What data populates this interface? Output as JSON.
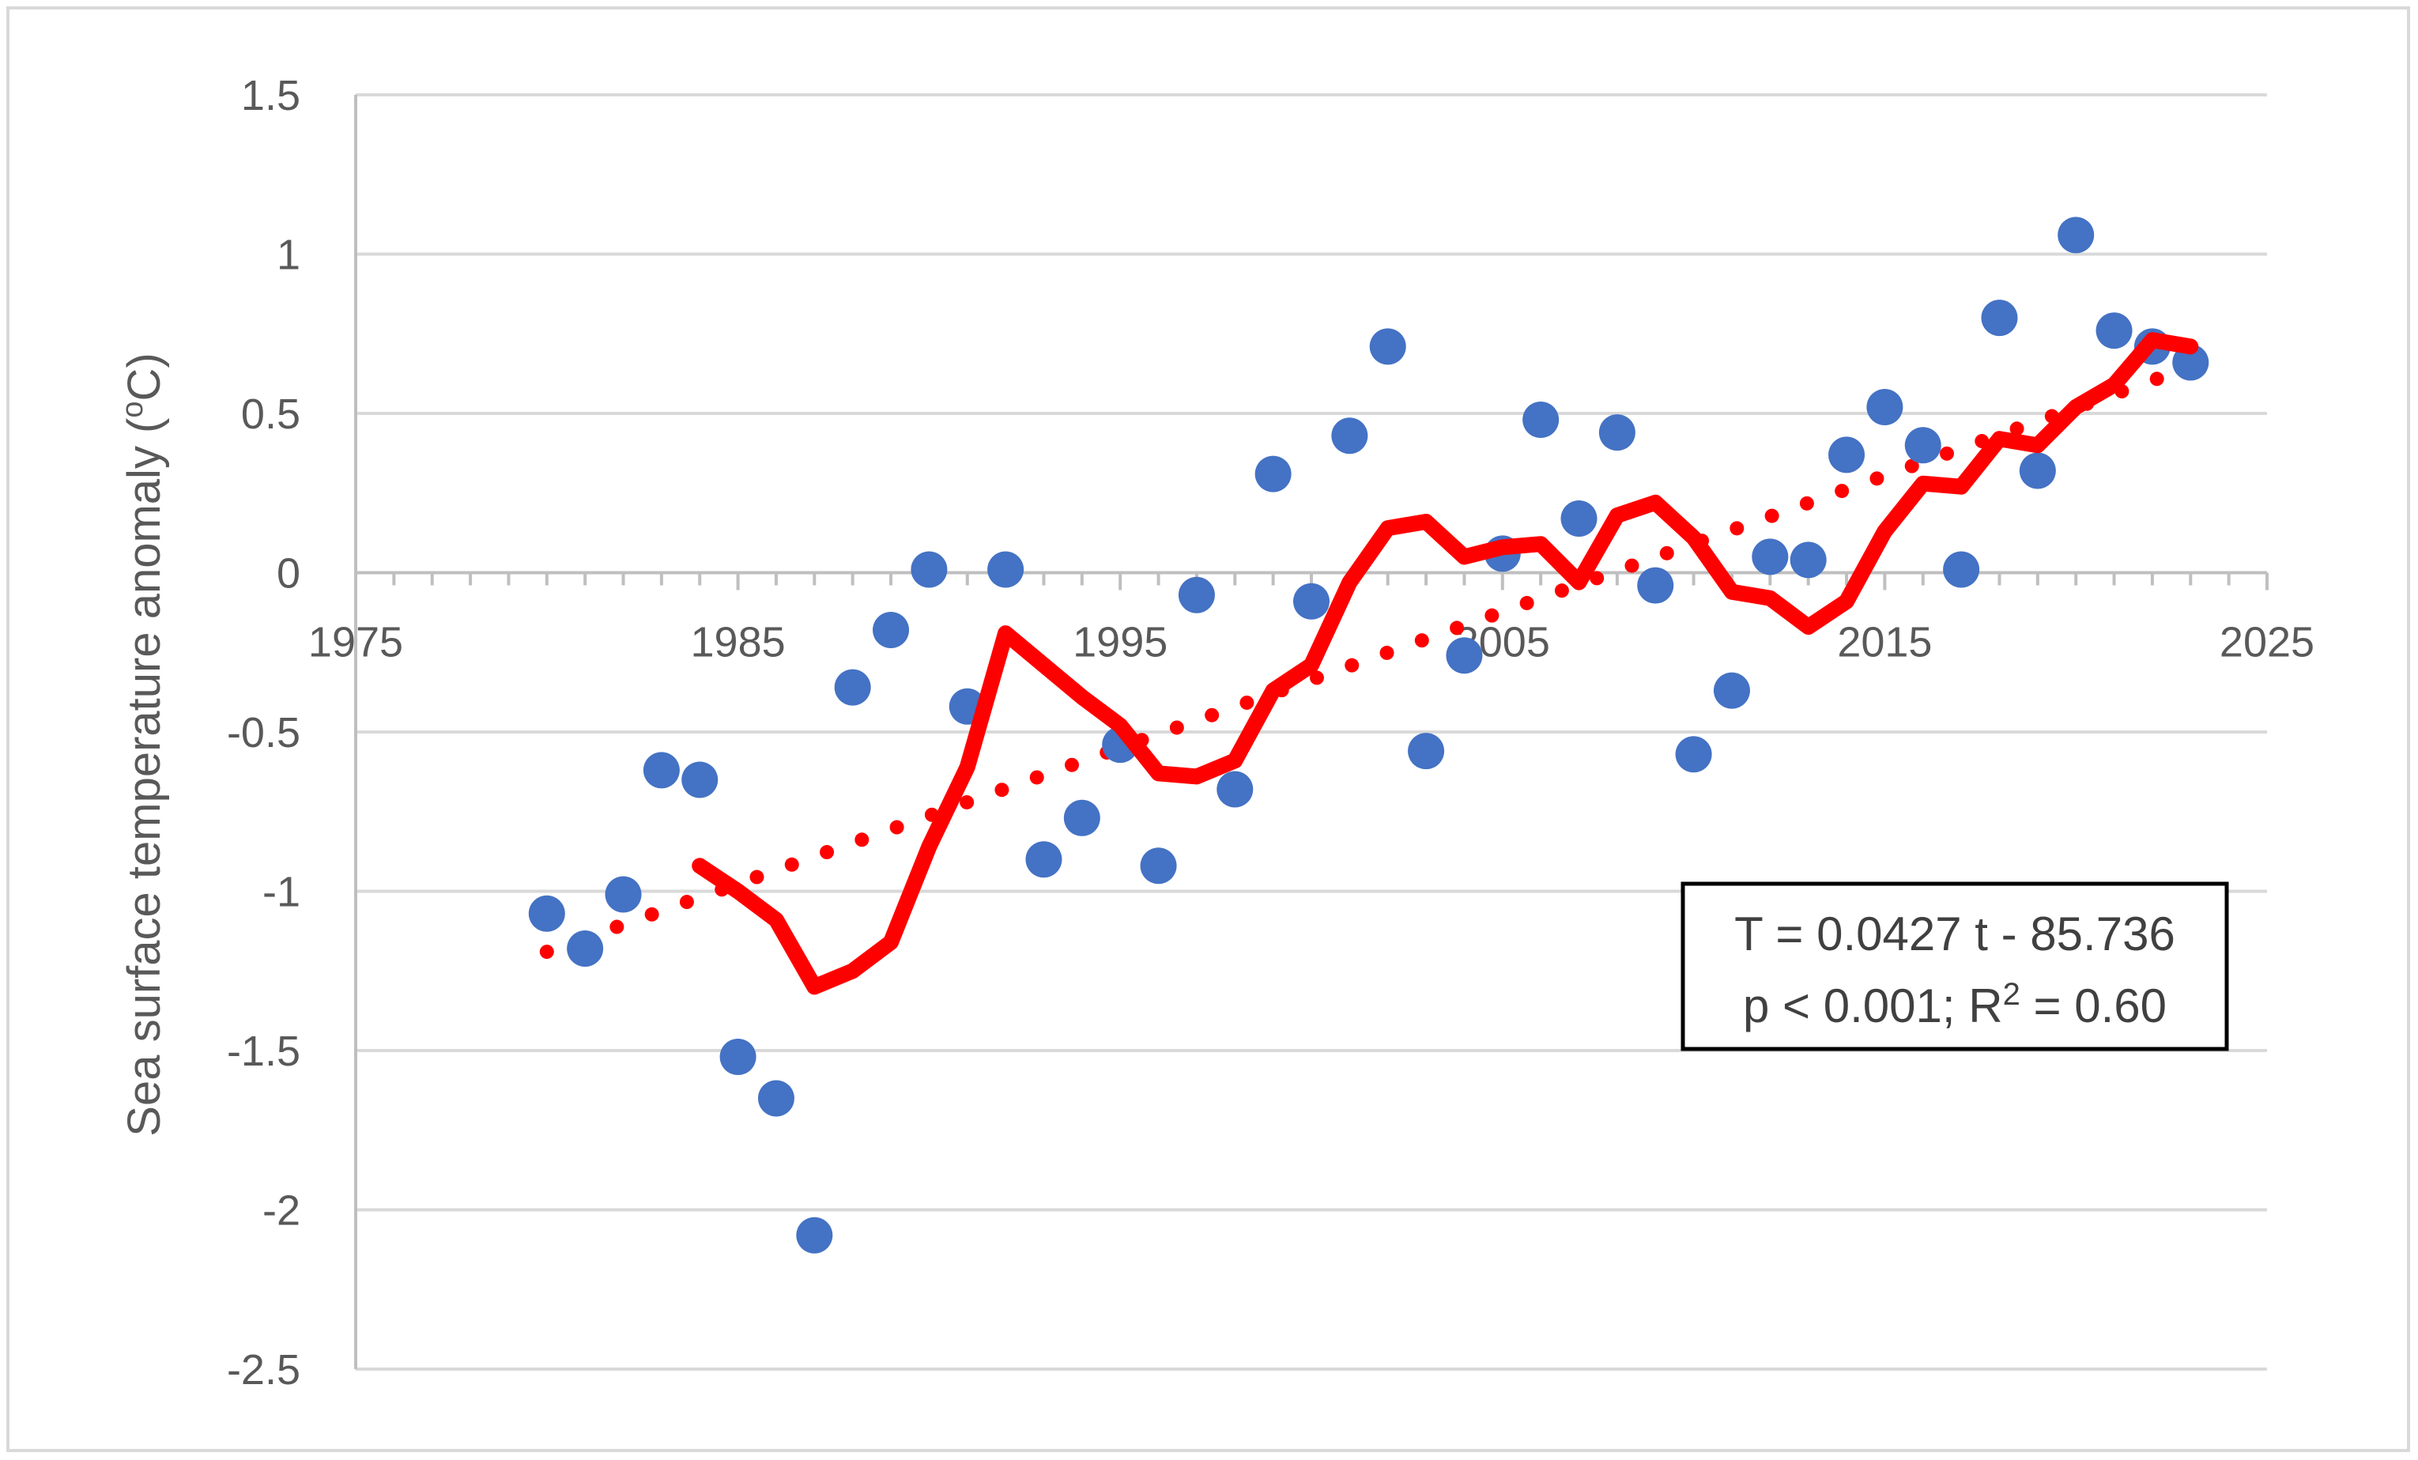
{
  "chart_data": {
    "type": "scatter",
    "ylabel": "Sea surface temperature anomaly (",
    "ylabel_sup": "o",
    "ylabel_unit": "C)",
    "xlim": [
      1975,
      2025
    ],
    "ylim": [
      -2.5,
      1.5
    ],
    "x_ticks": [
      1975,
      1985,
      1995,
      2005,
      2015,
      2025
    ],
    "y_ticks": [
      "1.5",
      "1",
      "0.5",
      "0",
      "-0.5",
      "-1",
      "-1.5",
      "-2",
      "-2.5"
    ],
    "grid": true,
    "legend": "none",
    "colors": {
      "points": "#4472c4",
      "moving_average": "#ff0000",
      "trend": "#ff0000",
      "grid": "#d9d9d9",
      "axis": "#bfbfbf"
    },
    "series": [
      {
        "kind": "points",
        "x": [
          1980,
          1981,
          1982,
          1983,
          1984,
          1985,
          1986,
          1987,
          1988,
          1989,
          1990,
          1991,
          1992,
          1993,
          1994,
          1995,
          1996,
          1997,
          1998,
          1999,
          2000,
          2001,
          2002,
          2003,
          2004,
          2005,
          2006,
          2007,
          2008,
          2009,
          2010,
          2011,
          2012,
          2013,
          2014,
          2015,
          2016,
          2017,
          2018,
          2019,
          2020,
          2021,
          2022,
          2023
        ],
        "y": [
          -1.07,
          -1.18,
          -1.01,
          -0.62,
          -0.65,
          -1.52,
          -1.65,
          -2.08,
          -0.36,
          -0.18,
          0.01,
          -0.42,
          0.01,
          -0.9,
          -0.77,
          -0.54,
          -0.92,
          -0.07,
          -0.68,
          0.31,
          -0.09,
          0.43,
          0.71,
          -0.56,
          -0.26,
          0.06,
          0.48,
          0.17,
          0.44,
          -0.04,
          -0.57,
          -0.37,
          0.05,
          0.04,
          0.37,
          0.52,
          0.4,
          0.01,
          0.8,
          0.32,
          1.06,
          0.76,
          0.71,
          0.66
        ]
      },
      {
        "kind": "moving_average",
        "x": [
          1984,
          1985,
          1986,
          1987,
          1988,
          1989,
          1990,
          1991,
          1992,
          1993,
          1994,
          1995,
          1996,
          1997,
          1998,
          1999,
          2000,
          2001,
          2002,
          2003,
          2004,
          2005,
          2006,
          2007,
          2008,
          2009,
          2010,
          2011,
          2012,
          2013,
          2014,
          2015,
          2016,
          2017,
          2018,
          2019,
          2020,
          2021,
          2022,
          2023
        ],
        "y": [
          -0.92,
          -1.0,
          -1.09,
          -1.3,
          -1.25,
          -1.16,
          -0.86,
          -0.61,
          -0.19,
          -0.29,
          -0.39,
          -0.48,
          -0.63,
          -0.64,
          -0.59,
          -0.37,
          -0.29,
          -0.03,
          0.14,
          0.16,
          0.05,
          0.08,
          0.09,
          -0.03,
          0.18,
          0.22,
          0.11,
          -0.06,
          -0.08,
          -0.17,
          -0.09,
          0.13,
          0.28,
          0.27,
          0.42,
          0.4,
          0.52,
          0.59,
          0.73,
          0.71
        ]
      },
      {
        "kind": "trend",
        "slope": 0.0427,
        "intercept": -85.736,
        "x_range": [
          1980,
          2023
        ]
      }
    ],
    "annotation": {
      "line1": "T = 0.0427 t - 85.736",
      "line2_prefix": "p < 0.001; R",
      "line2_sup": "2",
      "line2_suffix": " = 0.60"
    }
  }
}
